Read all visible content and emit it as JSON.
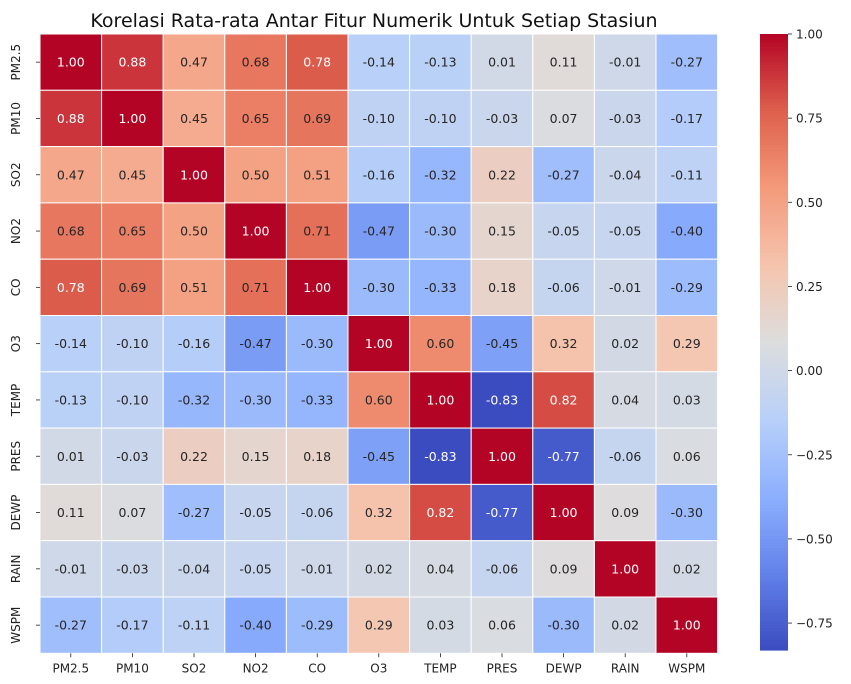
{
  "chart_data": {
    "type": "heatmap",
    "title": "Korelasi Rata-rata Antar Fitur Numerik Untuk Setiap Stasiun",
    "xlabel": "",
    "ylabel": "",
    "x_categories": [
      "PM2.5",
      "PM10",
      "SO2",
      "NO2",
      "CO",
      "O3",
      "TEMP",
      "PRES",
      "DEWP",
      "RAIN",
      "WSPM"
    ],
    "y_categories": [
      "PM2.5",
      "PM10",
      "SO2",
      "NO2",
      "CO",
      "O3",
      "TEMP",
      "PRES",
      "DEWP",
      "RAIN",
      "WSPM"
    ],
    "values": [
      [
        1.0,
        0.88,
        0.47,
        0.68,
        0.78,
        -0.14,
        -0.13,
        0.01,
        0.11,
        -0.01,
        -0.27
      ],
      [
        0.88,
        1.0,
        0.45,
        0.65,
        0.69,
        -0.1,
        -0.1,
        -0.03,
        0.07,
        -0.03,
        -0.17
      ],
      [
        0.47,
        0.45,
        1.0,
        0.5,
        0.51,
        -0.16,
        -0.32,
        0.22,
        -0.27,
        -0.04,
        -0.11
      ],
      [
        0.68,
        0.65,
        0.5,
        1.0,
        0.71,
        -0.47,
        -0.3,
        0.15,
        -0.05,
        -0.05,
        -0.4
      ],
      [
        0.78,
        0.69,
        0.51,
        0.71,
        1.0,
        -0.3,
        -0.33,
        0.18,
        -0.06,
        -0.01,
        -0.29
      ],
      [
        -0.14,
        -0.1,
        -0.16,
        -0.47,
        -0.3,
        1.0,
        0.6,
        -0.45,
        0.32,
        0.02,
        0.29
      ],
      [
        -0.13,
        -0.1,
        -0.32,
        -0.3,
        -0.33,
        0.6,
        1.0,
        -0.83,
        0.82,
        0.04,
        0.03
      ],
      [
        0.01,
        -0.03,
        0.22,
        0.15,
        0.18,
        -0.45,
        -0.83,
        1.0,
        -0.77,
        -0.06,
        0.06
      ],
      [
        0.11,
        0.07,
        -0.27,
        -0.05,
        -0.06,
        0.32,
        0.82,
        -0.77,
        1.0,
        0.09,
        -0.3
      ],
      [
        -0.01,
        -0.03,
        -0.04,
        -0.05,
        -0.01,
        0.02,
        0.04,
        -0.06,
        0.09,
        1.0,
        0.02
      ],
      [
        -0.27,
        -0.17,
        -0.11,
        -0.4,
        -0.29,
        0.29,
        0.03,
        0.06,
        -0.3,
        0.02,
        1.0
      ]
    ],
    "value_format": "0.00",
    "colormap": "coolwarm",
    "vmin": -0.83,
    "vmax": 1.0,
    "colorbar_ticks": [
      "1.00",
      "0.75",
      "0.50",
      "0.25",
      "0.00",
      "−0.25",
      "−0.50",
      "−0.75"
    ],
    "colorbar_tick_values": [
      1.0,
      0.75,
      0.5,
      0.25,
      0.0,
      -0.25,
      -0.5,
      -0.75
    ],
    "grid": false,
    "cell_border_color": "#ffffff"
  }
}
